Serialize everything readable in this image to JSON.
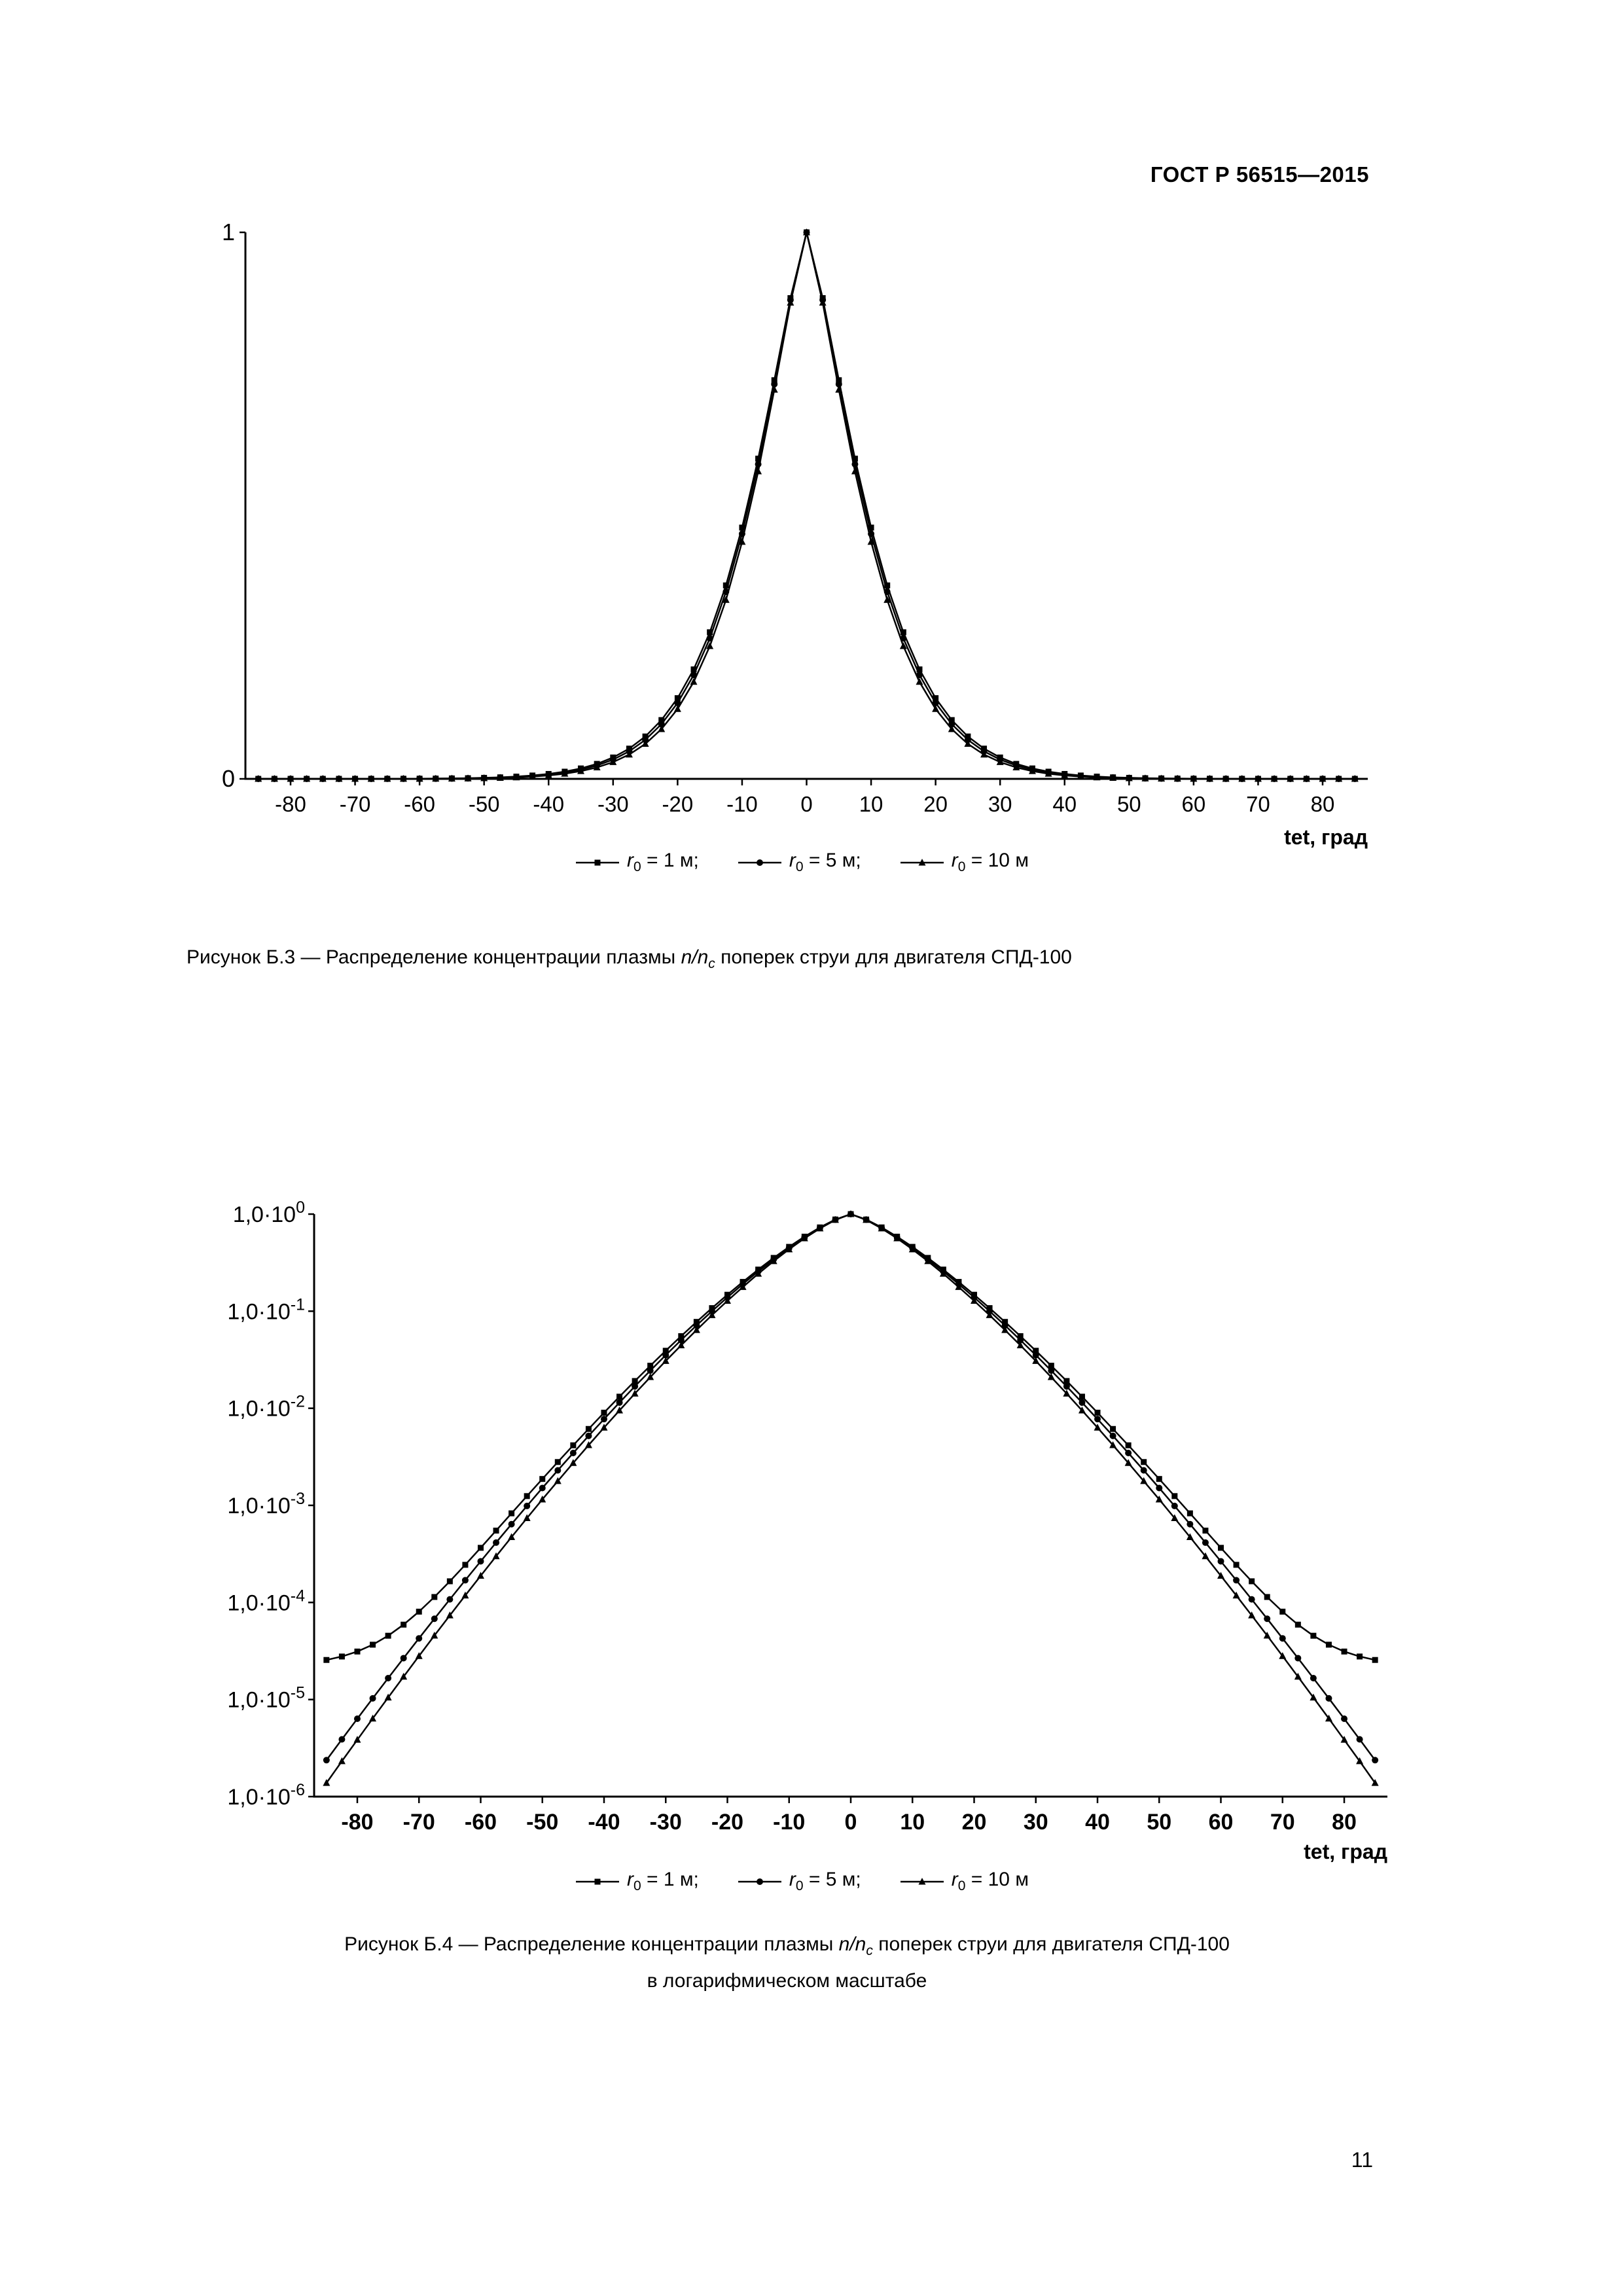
{
  "header": {
    "doc_code": "ГОСТ Р 56515—2015"
  },
  "footer": {
    "page_number": "11"
  },
  "figures": [
    {
      "caption": {
        "prefix": "Рисунок  Б.3 — Распределение концентрации плазмы ",
        "formula": "n/n",
        "formula_sub": "c",
        "suffix": " поперек струи для двигателя СПД-100"
      }
    },
    {
      "caption": {
        "prefix": "Рисунок  Б.4 — Распределение концентрации плазмы ",
        "formula": "n/n",
        "formula_sub": "c",
        "suffix": " поперек струи для двигателя СПД-100",
        "line2": "в логарифмическом масштабе"
      }
    }
  ],
  "chart_data": {
    "type": "line",
    "x_label": "tet, град",
    "x": [
      -85,
      -82.5,
      -80,
      -77.5,
      -75,
      -72.5,
      -70,
      -67.5,
      -65,
      -62.5,
      -60,
      -57.5,
      -55,
      -52.5,
      -50,
      -47.5,
      -45,
      -42.5,
      -40,
      -37.5,
      -35,
      -32.5,
      -30,
      -27.5,
      -25,
      -22.5,
      -20,
      -17.5,
      -15,
      -12.5,
      -10,
      -7.5,
      -5,
      -2.5,
      0,
      2.5,
      5,
      7.5,
      10,
      12.5,
      15,
      17.5,
      20,
      22.5,
      25,
      27.5,
      30,
      32.5,
      35,
      37.5,
      40,
      42.5,
      45,
      47.5,
      50,
      52.5,
      55,
      57.5,
      60,
      62.5,
      65,
      67.5,
      70,
      72.5,
      75,
      77.5,
      80,
      82.5,
      85
    ],
    "series": [
      {
        "key": "r0_1",
        "name": "r0 = 1 м",
        "marker": "square",
        "legend": {
          "var": "r",
          "sub": "0",
          "text": " = 1 м;"
        },
        "values": [
          2.556e-05,
          2.774e-05,
          3.122e-05,
          3.672e-05,
          4.541e-05,
          5.907e-05,
          8.041e-05,
          0.0001138,
          0.0001652,
          0.0002441,
          0.0003653,
          0.0005495,
          0.0008277,
          0.001246,
          0.00187,
          0.002795,
          0.004155,
          0.006124,
          0.009011,
          0.01317,
          0.01909,
          0.02744,
          0.03913,
          0.05535,
          0.07758,
          0.1076,
          0.1477,
          0.2003,
          0.2683,
          0.354,
          0.4598,
          0.5859,
          0.7295,
          0.8797,
          1.0,
          0.8797,
          0.7295,
          0.5859,
          0.4598,
          0.354,
          0.2683,
          0.2003,
          0.1477,
          0.1076,
          0.07758,
          0.05535,
          0.03913,
          0.02744,
          0.01909,
          0.01317,
          0.009011,
          0.006124,
          0.004155,
          0.002795,
          0.00187,
          0.001246,
          0.0008277,
          0.0005495,
          0.0003653,
          0.0002441,
          0.0001652,
          0.0001138,
          8.041e-05,
          5.907e-05,
          4.541e-05,
          3.672e-05,
          3.122e-05,
          2.774e-05,
          2.556e-05
        ]
      },
      {
        "key": "r0_5",
        "name": "r0 = 5 м",
        "marker": "circle",
        "legend": {
          "var": "r",
          "sub": "0",
          "text": " = 5 м;"
        },
        "values": [
          2.374e-06,
          3.891e-06,
          6.342e-06,
          1.028e-05,
          1.66e-05,
          2.668e-05,
          4.267e-05,
          6.795e-05,
          0.0001076,
          0.0001693,
          0.0002654,
          0.0004134,
          0.0006404,
          0.0009858,
          0.001509,
          0.002294,
          0.003462,
          0.005197,
          0.00774,
          0.01145,
          0.0168,
          0.02444,
          0.03525,
          0.05041,
          0.0714,
          0.1001,
          0.1389,
          0.1902,
          0.2572,
          0.3423,
          0.4484,
          0.5758,
          0.7222,
          0.8763,
          1.0,
          0.8763,
          0.7222,
          0.5758,
          0.4484,
          0.3423,
          0.2572,
          0.1902,
          0.1389,
          0.1001,
          0.0714,
          0.05041,
          0.03525,
          0.02444,
          0.0168,
          0.01145,
          0.00774,
          0.005197,
          0.003462,
          0.002294,
          0.001509,
          0.0009858,
          0.0006404,
          0.0004134,
          0.0002654,
          0.0001693,
          0.0001076,
          6.795e-05,
          4.267e-05,
          2.668e-05,
          1.66e-05,
          1.028e-05,
          6.342e-06,
          3.891e-06,
          2.374e-06
        ]
      },
      {
        "key": "r0_10",
        "name": "r0 = 10 м",
        "marker": "triangle",
        "legend": {
          "var": "r",
          "sub": "0",
          "text": " = 10 м"
        },
        "values": [
          1.384e-06,
          2.316e-06,
          3.85e-06,
          6.37e-06,
          1.049e-05,
          1.72e-05,
          2.805e-05,
          4.558e-05,
          7.353e-05,
          0.0001179,
          0.0001883,
          0.0002989,
          0.0004712,
          0.0007388,
          0.001151,
          0.00178,
          0.002734,
          0.004173,
          0.00632,
          0.0095,
          0.01417,
          0.02094,
          0.0307,
          0.0445,
          0.064,
          0.091,
          0.1279,
          0.1775,
          0.243,
          0.3274,
          0.4337,
          0.5627,
          0.7122,
          0.8714,
          1.0,
          0.8714,
          0.7122,
          0.5627,
          0.4337,
          0.3274,
          0.243,
          0.1775,
          0.1279,
          0.091,
          0.064,
          0.0445,
          0.0307,
          0.02094,
          0.01417,
          0.0095,
          0.00632,
          0.004173,
          0.002734,
          0.00178,
          0.001151,
          0.0007388,
          0.0004712,
          0.0002989,
          0.0001883,
          0.0001179,
          7.353e-05,
          4.558e-05,
          2.805e-05,
          1.72e-05,
          1.049e-05,
          6.37e-06,
          3.85e-06,
          2.316e-06,
          1.384e-06
        ]
      }
    ],
    "charts": [
      {
        "id": "b3",
        "y_scale": "linear",
        "y_min": 0,
        "y_max": 1,
        "y_ticks": [
          1,
          0
        ],
        "x_range": [
          -87,
          87
        ],
        "x_ticks": [
          -80,
          -70,
          -60,
          -50,
          -40,
          -30,
          -20,
          -10,
          0,
          10,
          20,
          30,
          40,
          50,
          60,
          70,
          80
        ],
        "x_label": "tet, град"
      },
      {
        "id": "b4",
        "y_scale": "log",
        "y_exp_max": 0,
        "y_exp_min": -6,
        "y_tick_mantissa": "1,0·10",
        "y_tick_exponents": [
          0,
          -1,
          -2,
          -3,
          -4,
          -5,
          -6
        ],
        "x_range": [
          -87,
          87
        ],
        "x_ticks": [
          -80,
          -70,
          -60,
          -50,
          -40,
          -30,
          -20,
          -10,
          0,
          10,
          20,
          30,
          40,
          50,
          60,
          70,
          80
        ],
        "x_label": "tet, град"
      }
    ]
  }
}
